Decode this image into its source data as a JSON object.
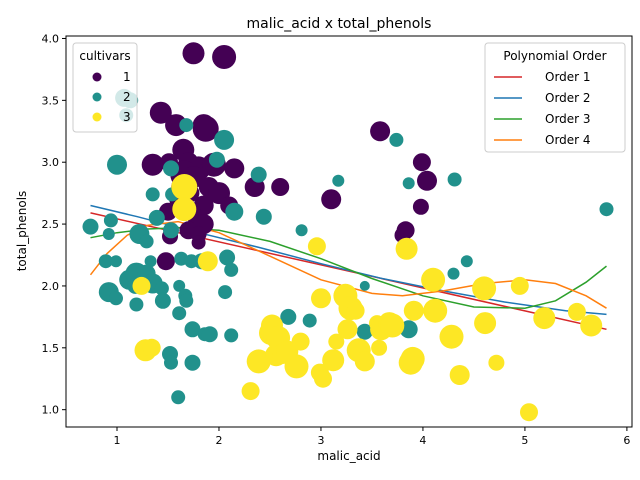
{
  "chart_data": {
    "type": "scatter",
    "title": "malic_acid x total_phenols",
    "xlabel": "malic_acid",
    "ylabel": "total_phenols",
    "xlim": [
      0.5,
      6.05
    ],
    "ylim": [
      0.86,
      4.02
    ],
    "xticks": [
      1,
      2,
      3,
      4,
      5,
      6
    ],
    "yticks": [
      1.0,
      1.5,
      2.0,
      2.5,
      3.0,
      3.5,
      4.0
    ],
    "xtick_labels": [
      "1",
      "2",
      "3",
      "4",
      "5",
      "6"
    ],
    "ytick_labels": [
      "1.0",
      "1.5",
      "2.0",
      "2.5",
      "3.0",
      "3.5",
      "4.0"
    ],
    "grid": false,
    "legend_cultivars": {
      "title": "cultivars",
      "position": "top-left",
      "entries": [
        {
          "label": "1",
          "color": "#440154"
        },
        {
          "label": "2",
          "color": "#21918c"
        },
        {
          "label": "3",
          "color": "#fde725"
        }
      ]
    },
    "legend_lines": {
      "title": "Polynomial Order",
      "position": "top-right",
      "entries": [
        {
          "label": "Order 1",
          "color": "#d62728"
        },
        {
          "label": "Order 2",
          "color": "#1f77b4"
        },
        {
          "label": "Order 3",
          "color": "#2ca02c"
        },
        {
          "label": "Order 4",
          "color": "#ff7f0e"
        }
      ]
    },
    "series": [
      {
        "name": "1",
        "color": "#440154",
        "points": [
          [
            1.75,
            3.88,
            11
          ],
          [
            2.05,
            3.85,
            12
          ],
          [
            1.43,
            3.4,
            11
          ],
          [
            1.85,
            3.3,
            11
          ],
          [
            1.58,
            3.3,
            11
          ],
          [
            1.87,
            3.27,
            13
          ],
          [
            1.65,
            3.1,
            11
          ],
          [
            1.35,
            2.98,
            11
          ],
          [
            1.51,
            3.0,
            9
          ],
          [
            1.7,
            3.0,
            10
          ],
          [
            1.8,
            2.95,
            12
          ],
          [
            1.95,
            2.98,
            12
          ],
          [
            1.66,
            2.9,
            14
          ],
          [
            1.75,
            2.88,
            11
          ],
          [
            1.63,
            2.8,
            10
          ],
          [
            1.9,
            2.8,
            10
          ],
          [
            2.0,
            2.75,
            11
          ],
          [
            1.72,
            2.75,
            9
          ],
          [
            1.6,
            2.7,
            9
          ],
          [
            1.85,
            2.65,
            10
          ],
          [
            2.1,
            2.65,
            9
          ],
          [
            1.5,
            2.6,
            9
          ],
          [
            1.78,
            2.55,
            9
          ],
          [
            1.85,
            2.5,
            10
          ],
          [
            1.7,
            2.45,
            9
          ],
          [
            1.8,
            2.42,
            8
          ],
          [
            1.52,
            2.4,
            8
          ],
          [
            1.8,
            2.35,
            7
          ],
          [
            1.48,
            2.2,
            9
          ],
          [
            2.15,
            2.95,
            10
          ],
          [
            2.35,
            2.8,
            10
          ],
          [
            2.6,
            2.8,
            9
          ],
          [
            3.1,
            2.7,
            10
          ],
          [
            3.58,
            3.25,
            10
          ],
          [
            3.99,
            3.0,
            9
          ],
          [
            4.04,
            2.85,
            10
          ],
          [
            3.98,
            2.64,
            8
          ],
          [
            3.8,
            2.41,
            8
          ],
          [
            3.83,
            2.45,
            9
          ],
          [
            2.16,
            2.6,
            7
          ]
        ]
      },
      {
        "name": "2",
        "color": "#21918c",
        "points": [
          [
            1.07,
            3.52,
            9
          ],
          [
            1.13,
            3.5,
            8
          ],
          [
            1.09,
            3.38,
            7
          ],
          [
            1.0,
            2.98,
            10
          ],
          [
            2.05,
            3.18,
            10
          ],
          [
            1.98,
            3.02,
            8
          ],
          [
            1.53,
            2.95,
            8
          ],
          [
            1.35,
            2.74,
            7
          ],
          [
            1.54,
            2.74,
            7
          ],
          [
            2.39,
            2.9,
            8
          ],
          [
            2.15,
            2.6,
            9
          ],
          [
            2.44,
            2.56,
            8
          ],
          [
            0.74,
            2.48,
            8
          ],
          [
            0.94,
            2.53,
            7
          ],
          [
            1.39,
            2.55,
            8
          ],
          [
            1.53,
            2.45,
            8
          ],
          [
            1.22,
            2.42,
            10
          ],
          [
            1.29,
            2.36,
            7
          ],
          [
            0.92,
            2.42,
            6
          ],
          [
            1.63,
            2.22,
            7
          ],
          [
            0.89,
            2.2,
            7
          ],
          [
            0.99,
            2.2,
            6
          ],
          [
            1.33,
            2.2,
            6
          ],
          [
            1.73,
            2.2,
            7
          ],
          [
            1.83,
            2.2,
            8
          ],
          [
            2.08,
            2.23,
            8
          ],
          [
            2.12,
            2.13,
            7
          ],
          [
            1.12,
            2.05,
            10
          ],
          [
            1.19,
            2.1,
            11
          ],
          [
            1.29,
            2.1,
            9
          ],
          [
            1.18,
            2.0,
            8
          ],
          [
            1.35,
            2.02,
            10
          ],
          [
            1.61,
            2.0,
            6
          ],
          [
            0.92,
            1.95,
            10
          ],
          [
            0.99,
            1.9,
            7
          ],
          [
            1.44,
            1.98,
            7
          ],
          [
            1.67,
            1.92,
            7
          ],
          [
            1.68,
            1.88,
            7
          ],
          [
            2.06,
            1.95,
            7
          ],
          [
            1.19,
            1.85,
            7
          ],
          [
            1.45,
            1.88,
            8
          ],
          [
            1.61,
            1.78,
            7
          ],
          [
            1.74,
            1.65,
            8
          ],
          [
            1.86,
            1.61,
            7
          ],
          [
            1.91,
            1.61,
            8
          ],
          [
            2.12,
            1.6,
            7
          ],
          [
            1.52,
            1.45,
            8
          ],
          [
            1.53,
            1.38,
            7
          ],
          [
            1.74,
            1.38,
            8
          ],
          [
            1.6,
            1.1,
            7
          ],
          [
            2.68,
            1.75,
            8
          ],
          [
            2.81,
            2.45,
            6
          ],
          [
            2.89,
            1.72,
            7
          ],
          [
            3.17,
            2.85,
            6
          ],
          [
            3.43,
            2.0,
            5
          ],
          [
            3.43,
            1.63,
            8
          ],
          [
            3.74,
            3.18,
            7
          ],
          [
            3.86,
            2.83,
            6
          ],
          [
            3.86,
            1.65,
            9
          ],
          [
            4.3,
            2.1,
            6
          ],
          [
            4.31,
            2.86,
            7
          ],
          [
            4.43,
            2.2,
            6
          ],
          [
            5.8,
            2.62,
            7
          ],
          [
            1.68,
            3.3,
            7
          ]
        ]
      },
      {
        "name": "3",
        "color": "#fde725",
        "points": [
          [
            1.66,
            2.8,
            13
          ],
          [
            1.66,
            2.62,
            12
          ],
          [
            1.89,
            2.2,
            10
          ],
          [
            1.24,
            2.0,
            9
          ],
          [
            1.28,
            1.48,
            11
          ],
          [
            1.34,
            1.5,
            9
          ],
          [
            2.31,
            1.15,
            9
          ],
          [
            2.39,
            1.39,
            12
          ],
          [
            2.51,
            1.62,
            12
          ],
          [
            2.52,
            1.68,
            11
          ],
          [
            2.56,
            1.44,
            11
          ],
          [
            2.58,
            1.58,
            12
          ],
          [
            2.62,
            1.45,
            10
          ],
          [
            2.67,
            1.47,
            11
          ],
          [
            2.76,
            1.35,
            12
          ],
          [
            2.8,
            1.55,
            9
          ],
          [
            2.96,
            2.32,
            9
          ],
          [
            3.0,
            1.9,
            10
          ],
          [
            2.99,
            1.3,
            9
          ],
          [
            3.02,
            1.25,
            9
          ],
          [
            3.12,
            1.4,
            11
          ],
          [
            3.15,
            1.55,
            8
          ],
          [
            3.24,
            1.92,
            12
          ],
          [
            3.26,
            1.65,
            10
          ],
          [
            3.29,
            1.82,
            12
          ],
          [
            3.34,
            1.8,
            9
          ],
          [
            3.37,
            1.48,
            12
          ],
          [
            3.43,
            1.39,
            10
          ],
          [
            3.55,
            1.7,
            8
          ],
          [
            3.57,
            1.5,
            8
          ],
          [
            3.59,
            1.65,
            11
          ],
          [
            3.67,
            1.7,
            11
          ],
          [
            3.7,
            1.68,
            12
          ],
          [
            3.84,
            2.3,
            11
          ],
          [
            3.88,
            1.38,
            12
          ],
          [
            3.9,
            1.41,
            12
          ],
          [
            3.91,
            1.8,
            10
          ],
          [
            4.1,
            2.05,
            12
          ],
          [
            4.12,
            1.8,
            12
          ],
          [
            4.28,
            1.59,
            12
          ],
          [
            4.36,
            1.28,
            10
          ],
          [
            4.6,
            1.98,
            12
          ],
          [
            4.61,
            1.7,
            11
          ],
          [
            4.72,
            1.38,
            8
          ],
          [
            4.95,
            2.0,
            9
          ],
          [
            5.04,
            0.98,
            9
          ],
          [
            5.19,
            1.74,
            11
          ],
          [
            5.51,
            1.79,
            9
          ],
          [
            5.65,
            1.68,
            11
          ]
        ]
      }
    ],
    "fits": [
      {
        "name": "Order 1",
        "color": "#d62728",
        "points": [
          [
            0.74,
            2.59
          ],
          [
            5.8,
            1.65
          ]
        ]
      },
      {
        "name": "Order 2",
        "color": "#1f77b4",
        "points": [
          [
            0.74,
            2.65
          ],
          [
            1.2,
            2.56
          ],
          [
            1.8,
            2.43
          ],
          [
            2.4,
            2.31
          ],
          [
            3.0,
            2.18
          ],
          [
            3.6,
            2.06
          ],
          [
            4.2,
            1.96
          ],
          [
            4.8,
            1.87
          ],
          [
            5.4,
            1.8
          ],
          [
            5.8,
            1.77
          ]
        ]
      },
      {
        "name": "Order 3",
        "color": "#2ca02c",
        "points": [
          [
            0.74,
            2.39
          ],
          [
            1.0,
            2.43
          ],
          [
            1.3,
            2.46
          ],
          [
            1.6,
            2.47
          ],
          [
            2.0,
            2.45
          ],
          [
            2.5,
            2.36
          ],
          [
            3.0,
            2.22
          ],
          [
            3.5,
            2.06
          ],
          [
            4.0,
            1.92
          ],
          [
            4.5,
            1.83
          ],
          [
            5.0,
            1.82
          ],
          [
            5.3,
            1.88
          ],
          [
            5.6,
            2.03
          ],
          [
            5.8,
            2.16
          ]
        ]
      },
      {
        "name": "Order 4",
        "color": "#ff7f0e",
        "points": [
          [
            0.74,
            2.09
          ],
          [
            0.9,
            2.26
          ],
          [
            1.1,
            2.41
          ],
          [
            1.3,
            2.49
          ],
          [
            1.6,
            2.52
          ],
          [
            2.0,
            2.43
          ],
          [
            2.5,
            2.24
          ],
          [
            3.0,
            2.05
          ],
          [
            3.5,
            1.94
          ],
          [
            3.8,
            1.92
          ],
          [
            4.2,
            1.96
          ],
          [
            4.6,
            2.02
          ],
          [
            5.0,
            2.05
          ],
          [
            5.3,
            2.02
          ],
          [
            5.6,
            1.92
          ],
          [
            5.8,
            1.82
          ]
        ]
      }
    ]
  }
}
